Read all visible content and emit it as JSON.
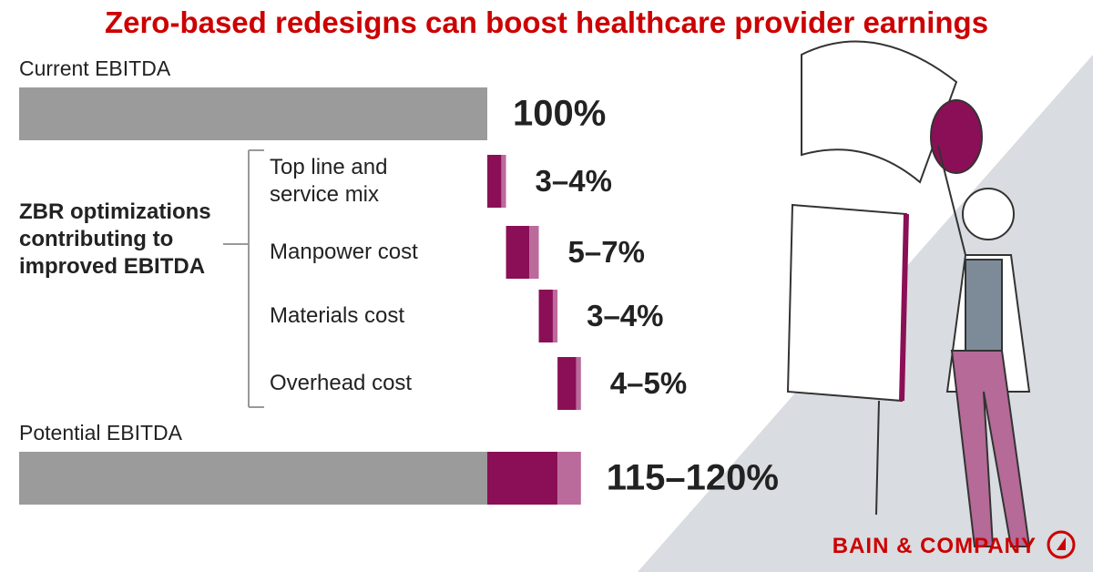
{
  "chart_data": {
    "type": "waterfall",
    "title": "Zero-based redesigns can boost healthcare provider earnings",
    "categories": [
      "Current EBITDA",
      "Top line and service mix",
      "Manpower cost",
      "Materials cost",
      "Overhead cost",
      "Potential EBITDA"
    ],
    "low": [
      100,
      3,
      5,
      3,
      4,
      115
    ],
    "high": [
      100,
      4,
      7,
      4,
      5,
      120
    ],
    "value_labels": [
      "100%",
      "3–4%",
      "5–7%",
      "3–4%",
      "4–5%",
      "115–120%"
    ],
    "group_label": "ZBR optimizations contributing to improved EBITDA",
    "colors": {
      "base": "#9b9b9b",
      "low": "#8b0f56",
      "high": "#bb6a9c"
    }
  },
  "brand": "BAIN & COMPANY"
}
